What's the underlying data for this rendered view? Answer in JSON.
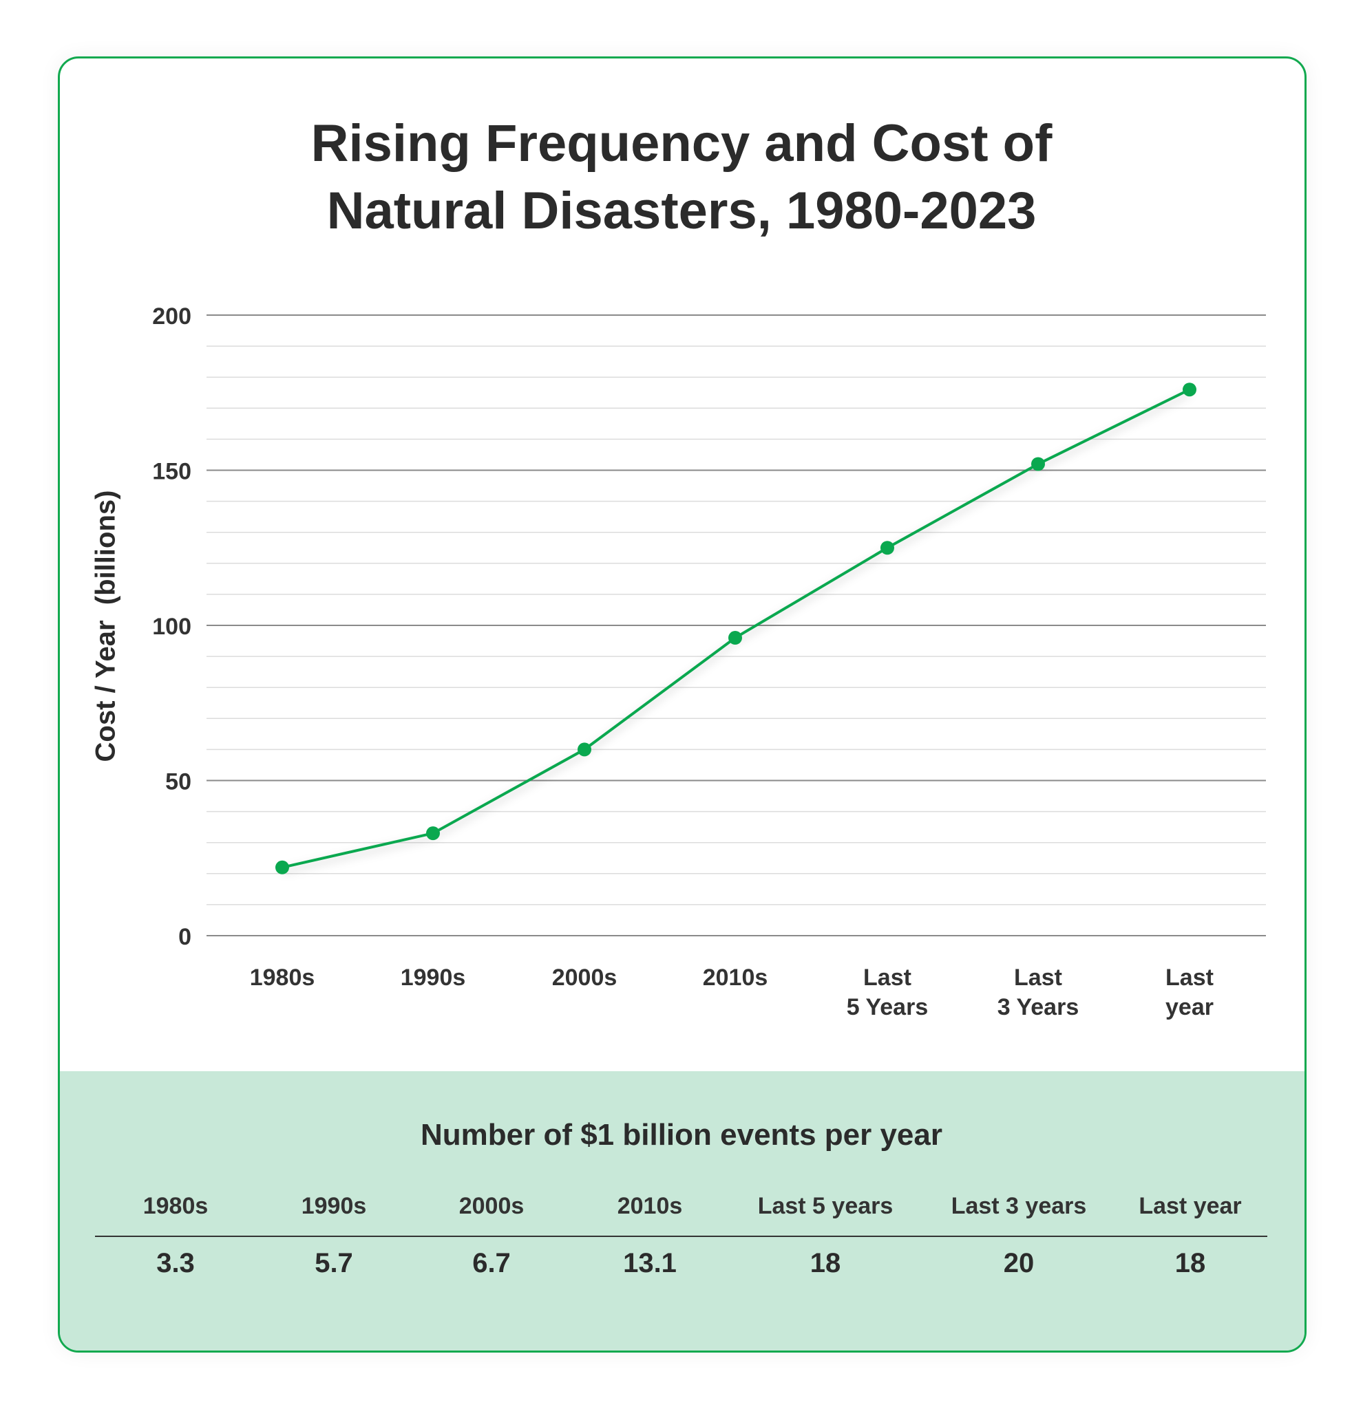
{
  "title_line1": "Rising Frequency and Cost of",
  "title_line2": "Natural Disasters, 1980-2023",
  "colors": {
    "accent": "#0aa84f",
    "border": "#12a94f",
    "band": "#c8e8d8"
  },
  "chart_data": {
    "type": "line",
    "ylabel": "Cost / Year  (billions)",
    "xlabel": "",
    "categories": [
      "1980s",
      "1990s",
      "2000s",
      "2010s",
      "Last\n5 Years",
      "Last\n3 Years",
      "Last\nyear"
    ],
    "values": [
      22,
      33,
      60,
      96,
      125,
      152,
      176
    ],
    "ylim": [
      0,
      200
    ],
    "yticks": [
      0,
      50,
      100,
      150,
      200
    ],
    "minor_grid_step": 10,
    "grid": true
  },
  "events_table": {
    "title": "Number of $1 billion events per year",
    "headers": [
      "1980s",
      "1990s",
      "2000s",
      "2010s",
      "Last 5 years",
      "Last 3 years",
      "Last year"
    ],
    "values": [
      "3.3",
      "5.7",
      "6.7",
      "13.1",
      "18",
      "20",
      "18"
    ]
  }
}
